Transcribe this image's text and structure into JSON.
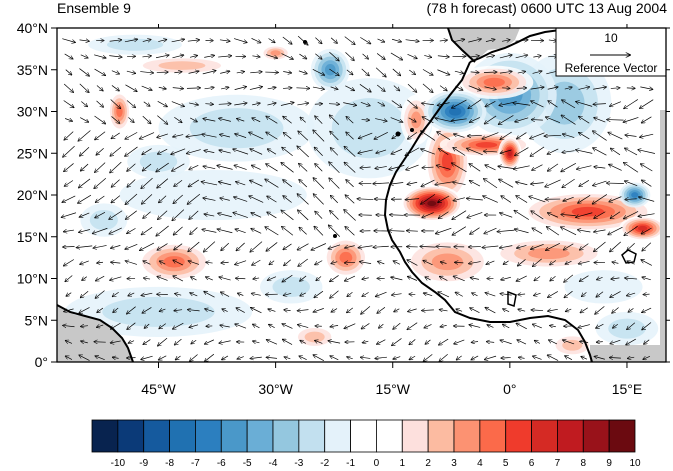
{
  "header": {
    "left": "Ensemble 9",
    "right": "(78 h forecast) 0600 UTC 13 Aug 2004"
  },
  "map": {
    "lon_range": [
      -58,
      20
    ],
    "lat_range": [
      0,
      40
    ],
    "y_ticks": [
      {
        "lat": 40,
        "label": "40°N"
      },
      {
        "lat": 35,
        "label": "35°N"
      },
      {
        "lat": 30,
        "label": "30°N"
      },
      {
        "lat": 25,
        "label": "25°N"
      },
      {
        "lat": 20,
        "label": "20°N"
      },
      {
        "lat": 15,
        "label": "15°N"
      },
      {
        "lat": 10,
        "label": "10°N"
      },
      {
        "lat": 5,
        "label": "5°N"
      },
      {
        "lat": 0,
        "label": "0°"
      }
    ],
    "x_ticks": [
      {
        "lon": -45,
        "label": "45°W"
      },
      {
        "lon": -30,
        "label": "30°W"
      },
      {
        "lon": -15,
        "label": "15°W"
      },
      {
        "lon": 0,
        "label": "0°"
      },
      {
        "lon": 15,
        "label": "15°E"
      }
    ],
    "land_color": "#c8c8c8",
    "coastline_color": "#000000"
  },
  "reference_vector": {
    "magnitude": "10",
    "label": "Reference Vector"
  },
  "colorbar": {
    "labels": [
      "-10",
      "-9",
      "-8",
      "-7",
      "-6",
      "-5",
      "-4",
      "-3",
      "-2",
      "-1",
      "0",
      "1",
      "2",
      "3",
      "4",
      "5",
      "6",
      "7",
      "8",
      "9",
      "10"
    ],
    "colors": [
      "#08234f",
      "#0b3a78",
      "#155a9e",
      "#2071b1",
      "#2c7fbf",
      "#4a98c9",
      "#6aaed6",
      "#94c7df",
      "#c2e0ef",
      "#e4f2fa",
      "#ffffff",
      "#ffffff",
      "#fde0dd",
      "#fcbba1",
      "#fc9272",
      "#fb6a4a",
      "#ef3b2c",
      "#d52a24",
      "#c01b20",
      "#99121a",
      "#6b0a10"
    ]
  },
  "anomaly_blobs": [
    {
      "lon": -10,
      "lat": 19,
      "rx": 4,
      "ry": 2.2,
      "level": 10
    },
    {
      "lon": -8,
      "lat": 24,
      "rx": 3,
      "ry": 5,
      "level": 6
    },
    {
      "lon": -3,
      "lat": 26,
      "rx": 6,
      "ry": 1.5,
      "level": 6
    },
    {
      "lon": 0,
      "lat": 25,
      "rx": 1.5,
      "ry": 2,
      "level": 8
    },
    {
      "lon": 10,
      "lat": 18,
      "rx": 9,
      "ry": 2.5,
      "level": 6
    },
    {
      "lon": 17,
      "lat": 16,
      "rx": 3,
      "ry": 1.5,
      "level": 7
    },
    {
      "lon": -7,
      "lat": 30,
      "rx": 4,
      "ry": 2.5,
      "level": -7
    },
    {
      "lon": 0,
      "lat": 32,
      "rx": 6,
      "ry": 5,
      "level": -5
    },
    {
      "lon": 7,
      "lat": 31,
      "rx": 6,
      "ry": 6,
      "level": -3
    },
    {
      "lon": 16,
      "lat": 20,
      "rx": 2,
      "ry": 1.5,
      "level": -6
    },
    {
      "lon": -2,
      "lat": 33.5,
      "rx": 5,
      "ry": 2,
      "level": 5
    },
    {
      "lon": -12,
      "lat": 29,
      "rx": 2,
      "ry": 3,
      "level": 4
    },
    {
      "lon": -43,
      "lat": 12,
      "rx": 5,
      "ry": 2.5,
      "level": 5
    },
    {
      "lon": -21,
      "lat": 12.5,
      "rx": 3,
      "ry": 2.5,
      "level": 5
    },
    {
      "lon": -50,
      "lat": 30,
      "rx": 1.5,
      "ry": 2.5,
      "level": 5
    },
    {
      "lon": -30,
      "lat": 37,
      "rx": 2,
      "ry": 1,
      "level": 4
    },
    {
      "lon": -42,
      "lat": 35.5,
      "rx": 7,
      "ry": 1.2,
      "level": 3
    },
    {
      "lon": -23,
      "lat": 35,
      "rx": 2.5,
      "ry": 2.5,
      "level": -5
    },
    {
      "lon": -18,
      "lat": 28,
      "rx": 8,
      "ry": 6,
      "level": -2
    },
    {
      "lon": -38,
      "lat": 20,
      "rx": 12,
      "ry": 3,
      "level": -1
    },
    {
      "lon": -45,
      "lat": 6,
      "rx": 12,
      "ry": 3,
      "level": -2
    },
    {
      "lon": -35,
      "lat": 28,
      "rx": 10,
      "ry": 4,
      "level": -2
    },
    {
      "lon": -8,
      "lat": 12,
      "rx": 6,
      "ry": 3,
      "level": 4
    },
    {
      "lon": 5,
      "lat": 13,
      "rx": 8,
      "ry": 2,
      "level": 4
    },
    {
      "lon": -48,
      "lat": 38,
      "rx": 6,
      "ry": 1.2,
      "level": -2
    },
    {
      "lon": -45,
      "lat": 24,
      "rx": 4,
      "ry": 2,
      "level": -2
    },
    {
      "lon": -28,
      "lat": 9,
      "rx": 4,
      "ry": 2,
      "level": -2
    },
    {
      "lon": 12,
      "lat": 9,
      "rx": 5,
      "ry": 2,
      "level": -1
    },
    {
      "lon": -52,
      "lat": 17,
      "rx": 3,
      "ry": 2,
      "level": -2
    },
    {
      "lon": 15,
      "lat": 4,
      "rx": 4,
      "ry": 2,
      "level": -2
    },
    {
      "lon": 8,
      "lat": 2,
      "rx": 3,
      "ry": 1.5,
      "level": 3
    },
    {
      "lon": -25,
      "lat": 3,
      "rx": 3,
      "ry": 1.5,
      "level": 3
    }
  ]
}
